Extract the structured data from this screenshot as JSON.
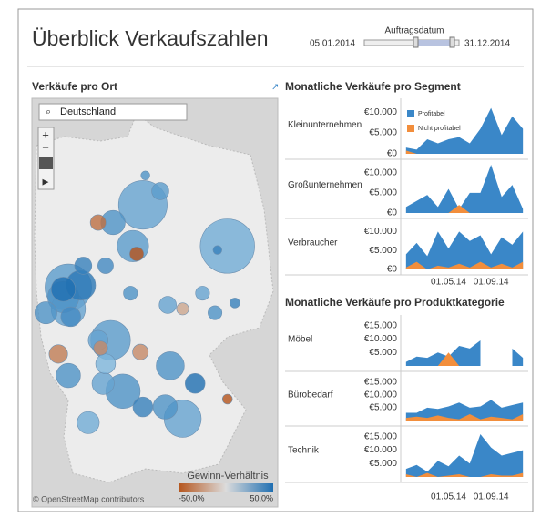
{
  "header": {
    "title": "Überblick Verkaufszahlen",
    "filter_label": "Auftragsdatum",
    "start": "05.01.2014",
    "end": "31.12.2014"
  },
  "map": {
    "title": "Verkäufe pro Ort",
    "search": "Deutschland",
    "attribution": "© OpenStreetMap contributors",
    "legend": {
      "title": "Gewinn-Verhältnis",
      "ticks": [
        {
          "value": -50,
          "label": "-50,0%"
        },
        {
          "value": 50,
          "label": "50,0%"
        }
      ]
    },
    "points": [
      {
        "lon": 10.0,
        "lat": 53.55,
        "sales": 24000,
        "ratio": 20
      },
      {
        "lon": 10.1,
        "lat": 54.3,
        "sales": 800,
        "ratio": 30
      },
      {
        "lon": 10.7,
        "lat": 53.9,
        "sales": 3000,
        "ratio": 25
      },
      {
        "lon": 8.8,
        "lat": 53.1,
        "sales": 6000,
        "ratio": 30
      },
      {
        "lon": 8.2,
        "lat": 53.1,
        "sales": 2500,
        "ratio": -40
      },
      {
        "lon": 9.6,
        "lat": 52.5,
        "sales": 10000,
        "ratio": 25
      },
      {
        "lon": 9.75,
        "lat": 52.3,
        "sales": 2000,
        "ratio": -50
      },
      {
        "lon": 8.5,
        "lat": 52.0,
        "sales": 2500,
        "ratio": 35
      },
      {
        "lon": 13.4,
        "lat": 52.5,
        "sales": 30000,
        "ratio": 15
      },
      {
        "lon": 13.0,
        "lat": 52.4,
        "sales": 800,
        "ratio": 40
      },
      {
        "lon": 12.4,
        "lat": 51.3,
        "sales": 2000,
        "ratio": 20
      },
      {
        "lon": 13.7,
        "lat": 51.05,
        "sales": 1000,
        "ratio": 40
      },
      {
        "lon": 7.0,
        "lat": 51.45,
        "sales": 22000,
        "ratio": 25
      },
      {
        "lon": 7.5,
        "lat": 51.5,
        "sales": 9000,
        "ratio": 45
      },
      {
        "lon": 6.8,
        "lat": 51.4,
        "sales": 6000,
        "ratio": 60
      },
      {
        "lon": 6.8,
        "lat": 51.2,
        "sales": 10000,
        "ratio": 30
      },
      {
        "lon": 7.0,
        "lat": 50.9,
        "sales": 12000,
        "ratio": 20
      },
      {
        "lon": 7.1,
        "lat": 50.7,
        "sales": 4000,
        "ratio": 35
      },
      {
        "lon": 7.6,
        "lat": 52.0,
        "sales": 3000,
        "ratio": 40
      },
      {
        "lon": 9.5,
        "lat": 51.3,
        "sales": 2000,
        "ratio": 30
      },
      {
        "lon": 8.7,
        "lat": 50.1,
        "sales": 16000,
        "ratio": 25
      },
      {
        "lon": 8.2,
        "lat": 50.1,
        "sales": 4000,
        "ratio": 20
      },
      {
        "lon": 8.3,
        "lat": 49.9,
        "sales": 2000,
        "ratio": -30
      },
      {
        "lon": 8.5,
        "lat": 49.5,
        "sales": 4000,
        "ratio": 10
      },
      {
        "lon": 7.0,
        "lat": 49.2,
        "sales": 6000,
        "ratio": 30
      },
      {
        "lon": 8.4,
        "lat": 49.0,
        "sales": 5000,
        "ratio": 20
      },
      {
        "lon": 9.2,
        "lat": 48.8,
        "sales": 12000,
        "ratio": 30
      },
      {
        "lon": 7.8,
        "lat": 48.0,
        "sales": 5000,
        "ratio": 15
      },
      {
        "lon": 10.0,
        "lat": 48.4,
        "sales": 4000,
        "ratio": 40
      },
      {
        "lon": 10.9,
        "lat": 48.4,
        "sales": 6000,
        "ratio": 30
      },
      {
        "lon": 11.6,
        "lat": 48.1,
        "sales": 14000,
        "ratio": 20
      },
      {
        "lon": 11.1,
        "lat": 49.45,
        "sales": 8000,
        "ratio": 30
      },
      {
        "lon": 9.9,
        "lat": 49.8,
        "sales": 2500,
        "ratio": -30
      },
      {
        "lon": 11.0,
        "lat": 51.0,
        "sales": 3000,
        "ratio": 20
      },
      {
        "lon": 11.6,
        "lat": 50.9,
        "sales": 1500,
        "ratio": -20
      },
      {
        "lon": 12.1,
        "lat": 49.0,
        "sales": 4000,
        "ratio": 55
      },
      {
        "lon": 13.4,
        "lat": 48.6,
        "sales": 1000,
        "ratio": -60
      },
      {
        "lon": 12.9,
        "lat": 50.8,
        "sales": 2000,
        "ratio": 30
      },
      {
        "lon": 6.6,
        "lat": 49.75,
        "sales": 3500,
        "ratio": -35
      },
      {
        "lon": 6.1,
        "lat": 50.8,
        "sales": 5000,
        "ratio": 30
      }
    ]
  },
  "chart_data": [
    {
      "type": "area",
      "title": "Monatliche Verkäufe pro Segment",
      "categories": [
        null,
        null,
        null,
        null,
        "01.05.14",
        null,
        null,
        null,
        "01.09.14",
        null,
        null,
        null
      ],
      "legend": [
        {
          "name": "Profitabel",
          "color": "#3a87c8"
        },
        {
          "name": "Nicht profitabel",
          "color": "#f28e3c"
        }
      ],
      "ylim": [
        0,
        12000
      ],
      "yticks": [
        {
          "value": 0,
          "label": "€0"
        },
        {
          "value": 5000,
          "label": "€5.000"
        },
        {
          "value": 10000,
          "label": "€10.000"
        }
      ],
      "panels": [
        {
          "name": "Kleinunternehmen",
          "series": [
            [
              1500,
              1000,
              3500,
              2500,
              3500,
              4000,
              2500,
              6000,
              11000,
              4500,
              9000,
              6000
            ],
            [
              800,
              0,
              0,
              0,
              0,
              0,
              0,
              0,
              0,
              0,
              0,
              0
            ]
          ]
        },
        {
          "name": "Großunternehmen",
          "series": [
            [
              1500,
              3000,
              4500,
              1500,
              6000,
              1000,
              5000,
              5000,
              12000,
              4000,
              7000,
              1000
            ],
            [
              0,
              0,
              0,
              0,
              0,
              2000,
              0,
              0,
              0,
              0,
              0,
              0
            ]
          ]
        },
        {
          "name": "Verbraucher",
          "series": [
            [
              4000,
              7000,
              3500,
              10000,
              5500,
              10000,
              7500,
              9000,
              4000,
              8500,
              6500,
              10000
            ],
            [
              500,
              2000,
              0,
              1000,
              500,
              1500,
              500,
              2000,
              500,
              1500,
              500,
              2000
            ]
          ]
        }
      ]
    },
    {
      "type": "area",
      "title": "Monatliche Verkäufe pro Produktkategorie",
      "categories": [
        null,
        null,
        null,
        null,
        "01.05.14",
        null,
        null,
        null,
        "01.09.14",
        null,
        null,
        null
      ],
      "colors": [
        "#3a87c8",
        "#f28e3c"
      ],
      "ylim": [
        0,
        17000
      ],
      "yticks": [
        {
          "value": 5000,
          "label": "€5.000"
        },
        {
          "value": 10000,
          "label": "€10.000"
        },
        {
          "value": 15000,
          "label": "€15.000"
        }
      ],
      "panels": [
        {
          "name": "Möbel",
          "series": [
            [
              1500,
              3500,
              3000,
              5000,
              3500,
              7500,
              6500,
              9500,
              null,
              null,
              6500,
              3000
            ],
            [
              0,
              0,
              0,
              0,
              5000,
              0,
              0,
              0,
              null,
              null,
              0,
              0
            ]
          ]
        },
        {
          "name": "Bürobedarf",
          "series": [
            [
              3000,
              3000,
              5000,
              4500,
              5500,
              7000,
              5000,
              5500,
              8000,
              5000,
              6000,
              7000
            ],
            [
              1000,
              1500,
              1000,
              2000,
              1000,
              500,
              2500,
              500,
              1500,
              1000,
              500,
              2500
            ]
          ]
        },
        {
          "name": "Technik",
          "series": [
            [
              3000,
              4500,
              2000,
              6000,
              4000,
              8000,
              5000,
              16000,
              11000,
              8000,
              9000,
              10000
            ],
            [
              1000,
              0,
              1500,
              0,
              500,
              1000,
              0,
              0,
              1000,
              500,
              500,
              1500
            ]
          ]
        }
      ]
    }
  ]
}
